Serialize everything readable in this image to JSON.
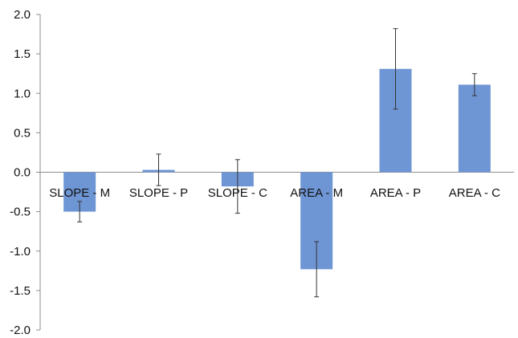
{
  "chart_data": {
    "type": "bar",
    "title": "",
    "xlabel": "",
    "ylabel": "",
    "categories": [
      "SLOPE - M",
      "SLOPE - P",
      "SLOPE - C",
      "AREA - M",
      "AREA - P",
      "AREA - C"
    ],
    "values": [
      -0.5,
      0.03,
      -0.18,
      -1.23,
      1.31,
      1.11
    ],
    "error": [
      0.13,
      0.2,
      0.34,
      0.35,
      0.51,
      0.14
    ],
    "ylim": [
      -2.0,
      2.0
    ],
    "yticks": [
      "2.0",
      "1.5",
      "1.0",
      "0.5",
      "0.0",
      "-0.5",
      "-1.0",
      "-1.5",
      "-2.0"
    ],
    "ytick_values": [
      2.0,
      1.5,
      1.0,
      0.5,
      0.0,
      -0.5,
      -1.0,
      -1.5,
      -2.0
    ],
    "grid": false,
    "legend": "none",
    "bar_color": "#6f96d4"
  }
}
